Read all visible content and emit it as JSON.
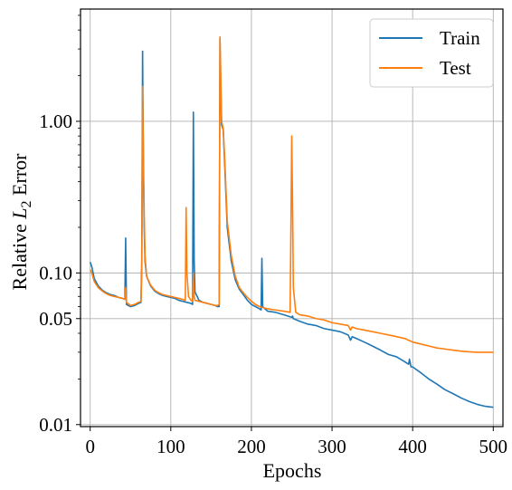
{
  "chart_data": {
    "type": "line",
    "xlabel": "Epochs",
    "ylabel_prefix": "Relative ",
    "ylabel_var": "L",
    "ylabel_sub": "2",
    "ylabel_suffix": " Error",
    "xlim": [
      -12,
      512
    ],
    "ylim": [
      0.0097,
      5.5
    ],
    "yscale": "log",
    "grid": true,
    "legend_position": "top-right",
    "x_ticks": [
      0,
      100,
      200,
      300,
      400,
      500
    ],
    "x_tick_labels": [
      "0",
      "100",
      "200",
      "300",
      "400",
      "500"
    ],
    "y_ticks": [
      0.01,
      0.05,
      0.1,
      1.0
    ],
    "y_tick_labels": [
      "0.01",
      "0.05",
      "0.10",
      "1.00"
    ],
    "colors": {
      "train": "#1f77b4",
      "test": "#ff7f0e",
      "grid": "#b0b0b0"
    },
    "series": [
      {
        "name": "Train",
        "color": "#1f77b4",
        "points": [
          [
            0,
            0.118
          ],
          [
            2,
            0.11
          ],
          [
            5,
            0.092
          ],
          [
            10,
            0.082
          ],
          [
            15,
            0.077
          ],
          [
            20,
            0.074
          ],
          [
            25,
            0.072
          ],
          [
            30,
            0.071
          ],
          [
            35,
            0.069
          ],
          [
            40,
            0.068
          ],
          [
            43,
            0.067
          ],
          [
            44,
            0.17
          ],
          [
            45,
            0.062
          ],
          [
            50,
            0.06
          ],
          [
            55,
            0.061
          ],
          [
            60,
            0.063
          ],
          [
            63,
            0.064
          ],
          [
            64,
            0.12
          ],
          [
            65,
            2.9
          ],
          [
            66,
            0.5
          ],
          [
            67,
            0.2
          ],
          [
            68,
            0.12
          ],
          [
            70,
            0.095
          ],
          [
            75,
            0.082
          ],
          [
            80,
            0.076
          ],
          [
            85,
            0.073
          ],
          [
            90,
            0.071
          ],
          [
            95,
            0.07
          ],
          [
            100,
            0.069
          ],
          [
            105,
            0.068
          ],
          [
            110,
            0.066
          ],
          [
            115,
            0.065
          ],
          [
            120,
            0.064
          ],
          [
            125,
            0.063
          ],
          [
            127,
            0.062
          ],
          [
            128,
            1.15
          ],
          [
            129,
            0.12
          ],
          [
            130,
            0.075
          ],
          [
            135,
            0.066
          ],
          [
            140,
            0.064
          ],
          [
            145,
            0.063
          ],
          [
            150,
            0.062
          ],
          [
            155,
            0.061
          ],
          [
            158,
            0.06
          ],
          [
            160,
            0.06
          ],
          [
            161,
            3.5
          ],
          [
            162,
            1.6
          ],
          [
            163,
            0.95
          ],
          [
            165,
            0.88
          ],
          [
            167,
            0.5
          ],
          [
            170,
            0.2
          ],
          [
            175,
            0.12
          ],
          [
            180,
            0.09
          ],
          [
            185,
            0.078
          ],
          [
            190,
            0.072
          ],
          [
            195,
            0.066
          ],
          [
            200,
            0.062
          ],
          [
            205,
            0.06
          ],
          [
            210,
            0.058
          ],
          [
            212,
            0.057
          ],
          [
            213,
            0.125
          ],
          [
            214,
            0.06
          ],
          [
            220,
            0.056
          ],
          [
            230,
            0.055
          ],
          [
            240,
            0.053
          ],
          [
            250,
            0.051
          ],
          [
            251,
            0.052
          ],
          [
            252,
            0.05
          ],
          [
            260,
            0.048
          ],
          [
            270,
            0.046
          ],
          [
            280,
            0.045
          ],
          [
            290,
            0.043
          ],
          [
            300,
            0.042
          ],
          [
            310,
            0.041
          ],
          [
            320,
            0.039
          ],
          [
            323,
            0.036
          ],
          [
            325,
            0.038
          ],
          [
            330,
            0.037
          ],
          [
            340,
            0.035
          ],
          [
            350,
            0.033
          ],
          [
            360,
            0.031
          ],
          [
            370,
            0.029
          ],
          [
            380,
            0.028
          ],
          [
            390,
            0.026
          ],
          [
            395,
            0.025
          ],
          [
            396,
            0.027
          ],
          [
            398,
            0.024
          ],
          [
            400,
            0.024
          ],
          [
            410,
            0.022
          ],
          [
            420,
            0.02
          ],
          [
            430,
            0.0185
          ],
          [
            440,
            0.017
          ],
          [
            450,
            0.016
          ],
          [
            460,
            0.015
          ],
          [
            470,
            0.0142
          ],
          [
            480,
            0.0136
          ],
          [
            490,
            0.0132
          ],
          [
            500,
            0.013
          ]
        ]
      },
      {
        "name": "Test",
        "color": "#ff7f0e",
        "points": [
          [
            0,
            0.105
          ],
          [
            2,
            0.1
          ],
          [
            5,
            0.088
          ],
          [
            10,
            0.08
          ],
          [
            15,
            0.076
          ],
          [
            20,
            0.073
          ],
          [
            25,
            0.071
          ],
          [
            30,
            0.07
          ],
          [
            35,
            0.069
          ],
          [
            40,
            0.068
          ],
          [
            43,
            0.067
          ],
          [
            44,
            0.08
          ],
          [
            45,
            0.064
          ],
          [
            50,
            0.061
          ],
          [
            55,
            0.062
          ],
          [
            60,
            0.064
          ],
          [
            63,
            0.065
          ],
          [
            64,
            0.1
          ],
          [
            65,
            1.7
          ],
          [
            66,
            0.6
          ],
          [
            67,
            0.25
          ],
          [
            68,
            0.13
          ],
          [
            70,
            0.095
          ],
          [
            75,
            0.083
          ],
          [
            80,
            0.077
          ],
          [
            85,
            0.074
          ],
          [
            90,
            0.072
          ],
          [
            95,
            0.071
          ],
          [
            100,
            0.07
          ],
          [
            105,
            0.069
          ],
          [
            110,
            0.068
          ],
          [
            115,
            0.067
          ],
          [
            118,
            0.066
          ],
          [
            119,
            0.27
          ],
          [
            120,
            0.1
          ],
          [
            122,
            0.07
          ],
          [
            125,
            0.066
          ],
          [
            127,
            0.065
          ],
          [
            128,
            0.1
          ],
          [
            129,
            0.07
          ],
          [
            130,
            0.066
          ],
          [
            135,
            0.065
          ],
          [
            140,
            0.064
          ],
          [
            145,
            0.063
          ],
          [
            150,
            0.062
          ],
          [
            155,
            0.061
          ],
          [
            158,
            0.061
          ],
          [
            160,
            0.062
          ],
          [
            161,
            3.6
          ],
          [
            162,
            2.0
          ],
          [
            163,
            1.0
          ],
          [
            165,
            0.9
          ],
          [
            167,
            0.55
          ],
          [
            170,
            0.22
          ],
          [
            175,
            0.13
          ],
          [
            180,
            0.095
          ],
          [
            185,
            0.08
          ],
          [
            190,
            0.074
          ],
          [
            195,
            0.069
          ],
          [
            200,
            0.065
          ],
          [
            205,
            0.062
          ],
          [
            210,
            0.06
          ],
          [
            215,
            0.059
          ],
          [
            220,
            0.058
          ],
          [
            230,
            0.057
          ],
          [
            240,
            0.056
          ],
          [
            248,
            0.055
          ],
          [
            249,
            0.2
          ],
          [
            250,
            0.8
          ],
          [
            251,
            0.3
          ],
          [
            252,
            0.08
          ],
          [
            255,
            0.055
          ],
          [
            260,
            0.053
          ],
          [
            270,
            0.052
          ],
          [
            280,
            0.05
          ],
          [
            290,
            0.049
          ],
          [
            300,
            0.047
          ],
          [
            310,
            0.046
          ],
          [
            320,
            0.045
          ],
          [
            323,
            0.042
          ],
          [
            325,
            0.044
          ],
          [
            330,
            0.043
          ],
          [
            340,
            0.042
          ],
          [
            350,
            0.041
          ],
          [
            360,
            0.04
          ],
          [
            370,
            0.039
          ],
          [
            380,
            0.038
          ],
          [
            390,
            0.037
          ],
          [
            395,
            0.036
          ],
          [
            400,
            0.035
          ],
          [
            410,
            0.034
          ],
          [
            420,
            0.033
          ],
          [
            430,
            0.032
          ],
          [
            440,
            0.0315
          ],
          [
            450,
            0.031
          ],
          [
            460,
            0.0305
          ],
          [
            470,
            0.0302
          ],
          [
            480,
            0.03
          ],
          [
            490,
            0.03
          ],
          [
            500,
            0.03
          ]
        ]
      }
    ]
  }
}
